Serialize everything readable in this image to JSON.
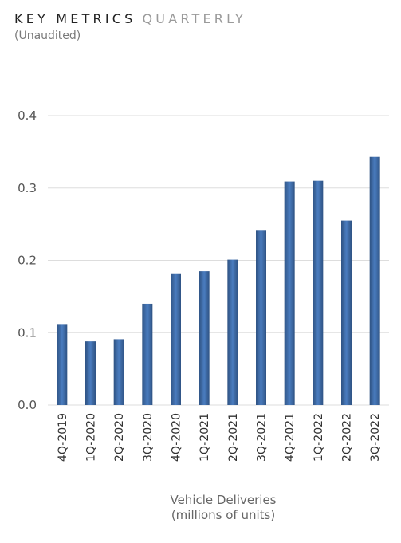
{
  "header": {
    "title_strong": "KEY METRICS",
    "title_light": "QUARTERLY",
    "subtitle": "(Unaudited)"
  },
  "chart_data": {
    "type": "bar",
    "categories": [
      "4Q-2019",
      "1Q-2020",
      "2Q-2020",
      "3Q-2020",
      "4Q-2020",
      "1Q-2021",
      "2Q-2021",
      "3Q-2021",
      "4Q-2021",
      "1Q-2022",
      "2Q-2022",
      "3Q-2022"
    ],
    "values": [
      0.112,
      0.088,
      0.091,
      0.14,
      0.181,
      0.185,
      0.201,
      0.241,
      0.309,
      0.31,
      0.255,
      0.343
    ],
    "ylim": [
      0,
      0.4
    ],
    "yticks": [
      "0.0",
      "0.1",
      "0.2",
      "0.3",
      "0.4"
    ],
    "xlabel_line1": "Vehicle Deliveries",
    "xlabel_line2": "(millions of units)",
    "grid": true,
    "bar_color_edge": "#2f5383",
    "bar_color_center": "#4a7cbf",
    "grid_color": "#dddddd"
  }
}
